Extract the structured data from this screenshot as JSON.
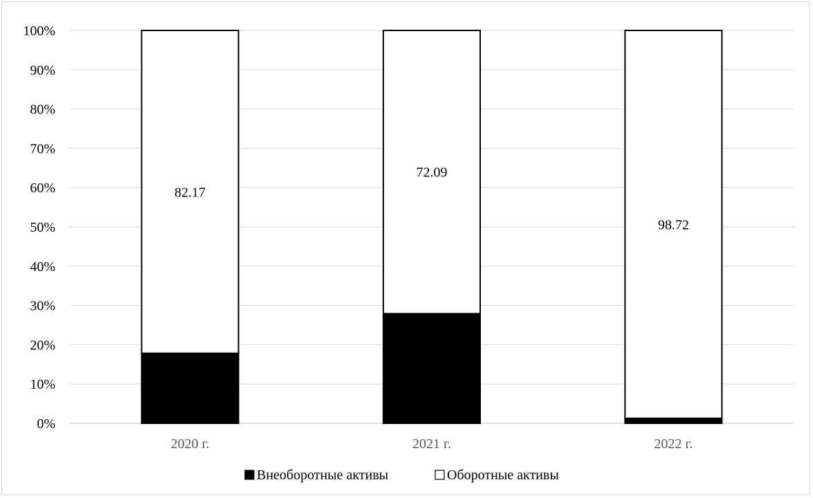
{
  "chart_data": {
    "type": "bar",
    "stacked": true,
    "percent_stacked": true,
    "categories": [
      "2020 г.",
      "2021 г.",
      "2022 г."
    ],
    "series": [
      {
        "name": "Внеоборотные активы",
        "values": [
          17.83,
          27.91,
          1.28
        ],
        "fill": "#000000"
      },
      {
        "name": "Оборотные активы",
        "values": [
          82.17,
          72.09,
          98.72
        ],
        "fill": "#ffffff",
        "data_labels": [
          "82.17",
          "72.09",
          "98.72"
        ]
      }
    ],
    "y_ticks": [
      "0%",
      "10%",
      "20%",
      "30%",
      "40%",
      "50%",
      "60%",
      "70%",
      "80%",
      "90%",
      "100%"
    ],
    "ylim": [
      0,
      100
    ],
    "grid": true,
    "legend_position": "bottom",
    "colors": {
      "gridline": "#d9d9d9",
      "axis_text": "#595959",
      "bar_outline": "#000000"
    }
  }
}
